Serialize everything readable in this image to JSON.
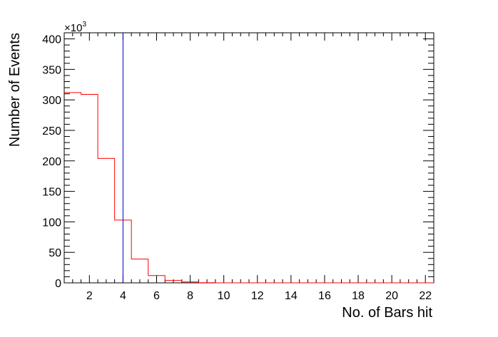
{
  "chart_data": {
    "type": "histogram",
    "title": "",
    "xlabel": "No. of Bars hit",
    "ylabel": "Number of Events",
    "y_multiplier_label": "×10",
    "y_multiplier_exponent": "3",
    "xlim": [
      0.5,
      22.5
    ],
    "ylim": [
      0,
      410
    ],
    "x_ticks": [
      2,
      4,
      6,
      8,
      10,
      12,
      14,
      16,
      18,
      20,
      22
    ],
    "y_ticks": [
      0,
      50,
      100,
      150,
      200,
      250,
      300,
      350,
      400
    ],
    "bin_edges": [
      0.5,
      1.5,
      2.5,
      3.5,
      4.5,
      5.5,
      6.5,
      7.5,
      8.5,
      9.5,
      10.5,
      11.5,
      12.5,
      13.5,
      14.5,
      15.5,
      16.5,
      17.5,
      18.5,
      19.5,
      20.5,
      21.5,
      22.5
    ],
    "values": [
      312,
      309,
      204,
      103,
      39,
      12,
      4,
      1.5,
      0.3,
      0,
      0,
      0,
      0,
      0,
      0,
      0,
      0,
      0,
      0,
      0,
      0,
      0
    ],
    "cut_line_x": 4,
    "grid": false,
    "legend": "none",
    "colors": {
      "histogram": "#ff0000",
      "cut_line": "#0000cc",
      "axes": "#000000"
    }
  }
}
